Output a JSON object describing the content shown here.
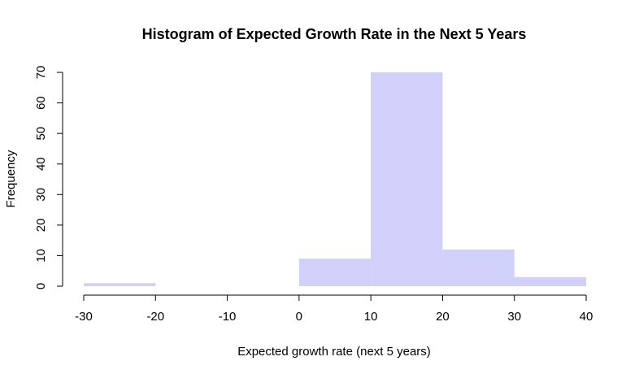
{
  "chart_data": {
    "type": "bar",
    "title": "Histogram of Expected Growth Rate in the Next 5 Years",
    "xlabel": "Expected growth rate (next 5 years)",
    "ylabel": "Frequency",
    "bins": [
      {
        "start": -30,
        "end": -20,
        "count": 1
      },
      {
        "start": -20,
        "end": -10,
        "count": 0
      },
      {
        "start": -10,
        "end": 0,
        "count": 0
      },
      {
        "start": 0,
        "end": 10,
        "count": 9
      },
      {
        "start": 10,
        "end": 20,
        "count": 70
      },
      {
        "start": 20,
        "end": 30,
        "count": 12
      },
      {
        "start": 30,
        "end": 40,
        "count": 3
      }
    ],
    "xticks": [
      -30,
      -20,
      -10,
      0,
      10,
      20,
      30,
      40
    ],
    "yticks": [
      0,
      10,
      20,
      30,
      40,
      50,
      60,
      70
    ],
    "xlim": [
      -30,
      40
    ],
    "ylim": [
      0,
      70
    ],
    "grid": false,
    "bar_color": "#d0d0fa"
  }
}
